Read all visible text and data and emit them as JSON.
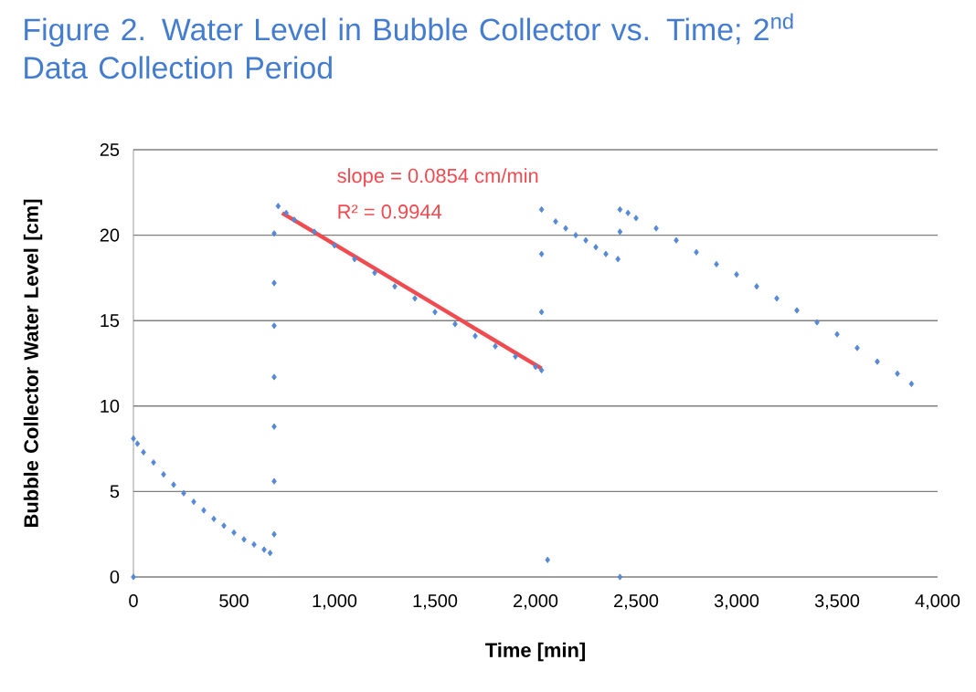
{
  "chart_data": {
    "type": "scatter",
    "title": "Figure 2. Water Level in Bubble Collector vs. Time; 2$^{nd}$ Data Collection Period",
    "xlabel": "Time [min]",
    "ylabel": "Bubble Collector  Water Level [cm]",
    "xlim": [
      0,
      4000
    ],
    "ylim": [
      0,
      25
    ],
    "xticks": [
      0,
      500,
      {
        "value": 1000,
        "label": "1,000"
      },
      {
        "value": 1500,
        "label": "1,500"
      },
      {
        "value": 2000,
        "label": "2,000"
      },
      {
        "value": 2500,
        "label": "2,500"
      },
      {
        "value": 3000,
        "label": "3,000"
      },
      {
        "value": 3500,
        "label": "3,500"
      },
      {
        "value": 4000,
        "label": "4,000"
      }
    ],
    "yticks": [
      0,
      5,
      10,
      15,
      20,
      25
    ],
    "grid": "y",
    "annotations": [
      "slope = 0.0854 cm/min",
      "R² = 0.9944"
    ],
    "series": [
      {
        "marker": "diamond",
        "color": "#5588d6",
        "x": [
          0,
          0,
          20,
          50,
          100,
          150,
          200,
          250,
          300,
          350,
          400,
          450,
          500,
          550,
          600,
          650,
          680,
          700,
          700,
          700,
          700,
          700,
          700,
          700,
          720,
          760,
          800,
          900,
          1000,
          1100,
          1200,
          1300,
          1400,
          1500,
          1600,
          1700,
          1800,
          1900,
          2000,
          2030,
          2030,
          2030,
          2030,
          2060,
          2100,
          2150,
          2200,
          2250,
          2300,
          2350,
          2410,
          2420,
          2420,
          2420,
          2460,
          2500,
          2600,
          2700,
          2800,
          2900,
          3000,
          3100,
          3200,
          3300,
          3400,
          3500,
          3600,
          3700,
          3800,
          3870
        ],
        "values": [
          0,
          8.1,
          7.8,
          7.3,
          6.7,
          6.0,
          5.4,
          4.9,
          4.4,
          3.9,
          3.4,
          3.0,
          2.6,
          2.2,
          1.9,
          1.6,
          1.4,
          2.5,
          5.6,
          8.8,
          11.7,
          14.7,
          17.2,
          20.1,
          21.7,
          21.3,
          20.9,
          20.2,
          19.4,
          18.6,
          17.8,
          17.0,
          16.3,
          15.5,
          14.8,
          14.1,
          13.5,
          12.9,
          12.3,
          12.1,
          21.5,
          18.9,
          15.5,
          1.0,
          20.8,
          20.4,
          20.0,
          19.7,
          19.3,
          18.9,
          18.6,
          21.5,
          20.2,
          0,
          21.3,
          21.0,
          20.4,
          19.7,
          19.0,
          18.3,
          17.7,
          17.0,
          16.3,
          15.6,
          14.9,
          14.2,
          13.4,
          12.6,
          11.9,
          11.3
        ]
      },
      {
        "type": "line",
        "marker": "none",
        "color": "#f04b50",
        "x": [
          740,
          2030
        ],
        "values": [
          21.3,
          12.2
        ]
      }
    ]
  }
}
